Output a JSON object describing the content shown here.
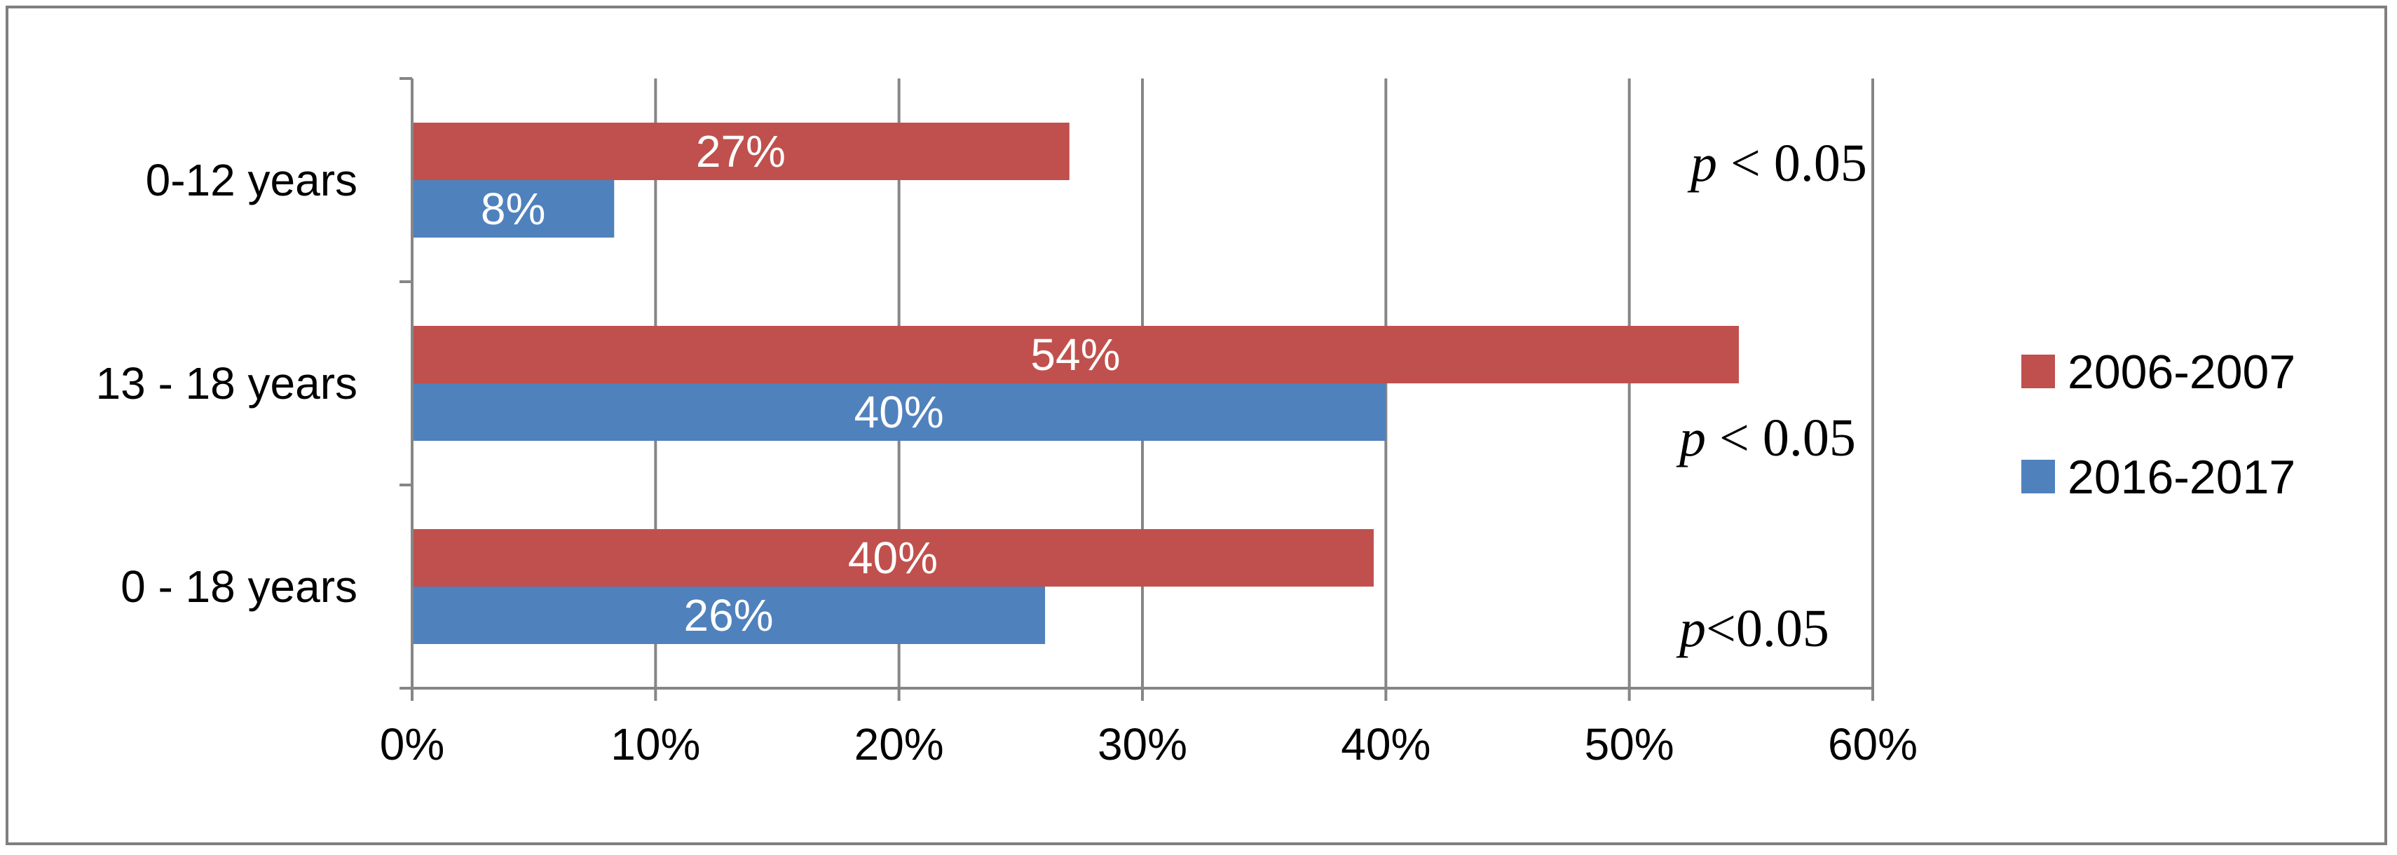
{
  "chart_data": {
    "type": "bar",
    "orientation": "horizontal",
    "categories": [
      "0-12 years",
      "13 - 18 years",
      "0 - 18 years"
    ],
    "series": [
      {
        "name": "2006-2007",
        "values": [
          27,
          54.5,
          39.5
        ],
        "labels": [
          "27%",
          "54%",
          "40%"
        ],
        "color": "#c0504d"
      },
      {
        "name": "2016-2017",
        "values": [
          8.3,
          40,
          26
        ],
        "labels": [
          "8%",
          "40%",
          "26%"
        ],
        "color": "#4f81bd"
      }
    ],
    "xlim": [
      0,
      60
    ],
    "x_ticks": [
      0,
      10,
      20,
      30,
      40,
      50,
      60
    ],
    "x_tick_labels": [
      "0%",
      "10%",
      "20%",
      "30%",
      "40%",
      "50%",
      "60%"
    ],
    "grid": true,
    "legend_position": "right",
    "annotations": [
      {
        "category": "0-12 years",
        "p": "p",
        "rest": " < 0.05"
      },
      {
        "category": "13 - 18 years",
        "p": "p",
        "rest": " < 0.05"
      },
      {
        "category": "0 - 18 years",
        "p": "p",
        "rest": "<0.05"
      }
    ],
    "axis_color": "#868686",
    "grid_color": "#868686"
  }
}
